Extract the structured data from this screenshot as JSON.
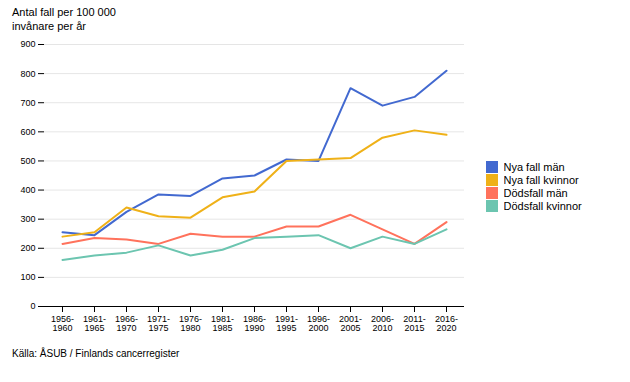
{
  "chart_data": {
    "type": "line",
    "y_label": "Antal fall per 100 000\ninvånare per år",
    "source": "Källa: ÅSUB / Finlands cancerregister",
    "categories": [
      "1956-\n1960",
      "1961-\n1965",
      "1966-\n1970",
      "1971-\n1975",
      "1976-\n1980",
      "1981-\n1985",
      "1986-\n1990",
      "1991-\n1995",
      "1996-\n2000",
      "2001-\n2005",
      "2006-\n2010",
      "2011-\n2015",
      "2016-\n2020"
    ],
    "series": [
      {
        "name": "Nya fall män",
        "values": [
          255,
          245,
          325,
          385,
          380,
          440,
          450,
          505,
          500,
          750,
          690,
          720,
          810
        ]
      },
      {
        "name": "Nya fall kvinnor",
        "values": [
          240,
          255,
          340,
          310,
          305,
          375,
          395,
          500,
          505,
          510,
          580,
          605,
          590
        ]
      },
      {
        "name": "Dödsfall män",
        "values": [
          215,
          235,
          230,
          215,
          250,
          240,
          240,
          275,
          275,
          315,
          265,
          215,
          290
        ]
      },
      {
        "name": "Dödsfall kvinnor",
        "values": [
          160,
          175,
          185,
          210,
          175,
          195,
          235,
          240,
          245,
          200,
          240,
          215,
          265
        ]
      }
    ],
    "ylim": [
      0,
      900
    ],
    "yticks": [
      0,
      100,
      200,
      300,
      400,
      500,
      600,
      700,
      800,
      900
    ],
    "grid": true,
    "legend": "right"
  }
}
